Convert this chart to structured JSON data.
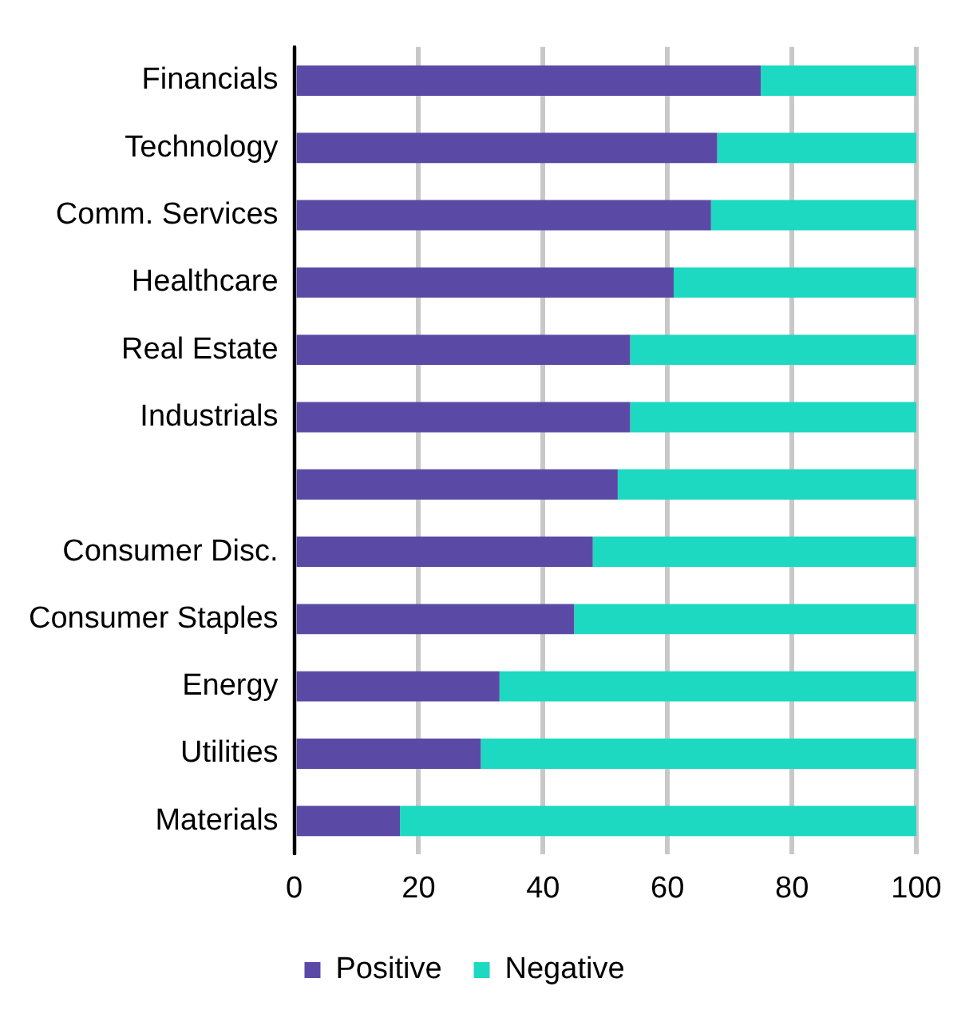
{
  "chart_data": {
    "type": "bar",
    "orientation": "horizontal",
    "stacked": true,
    "categories": [
      "Financials",
      "Technology",
      "Comm. Services",
      "Healthcare",
      "Real Estate",
      "Industrials",
      null,
      "Consumer Disc.",
      "Consumer Staples",
      "Energy",
      "Utilities",
      "Materials"
    ],
    "series": [
      {
        "name": "Positive",
        "color": "#5b4aa5",
        "values": [
          75,
          68,
          67,
          61,
          54,
          54,
          52,
          48,
          45,
          33,
          30,
          17
        ]
      },
      {
        "name": "Negative",
        "color": "#1dd9c1",
        "values": [
          25,
          32,
          33,
          39,
          46,
          46,
          48,
          52,
          55,
          67,
          70,
          83
        ]
      }
    ],
    "xlim": [
      0,
      100
    ],
    "xticks": [
      0,
      20,
      40,
      60,
      80,
      100
    ],
    "grid": "x",
    "legend": "bottom"
  }
}
